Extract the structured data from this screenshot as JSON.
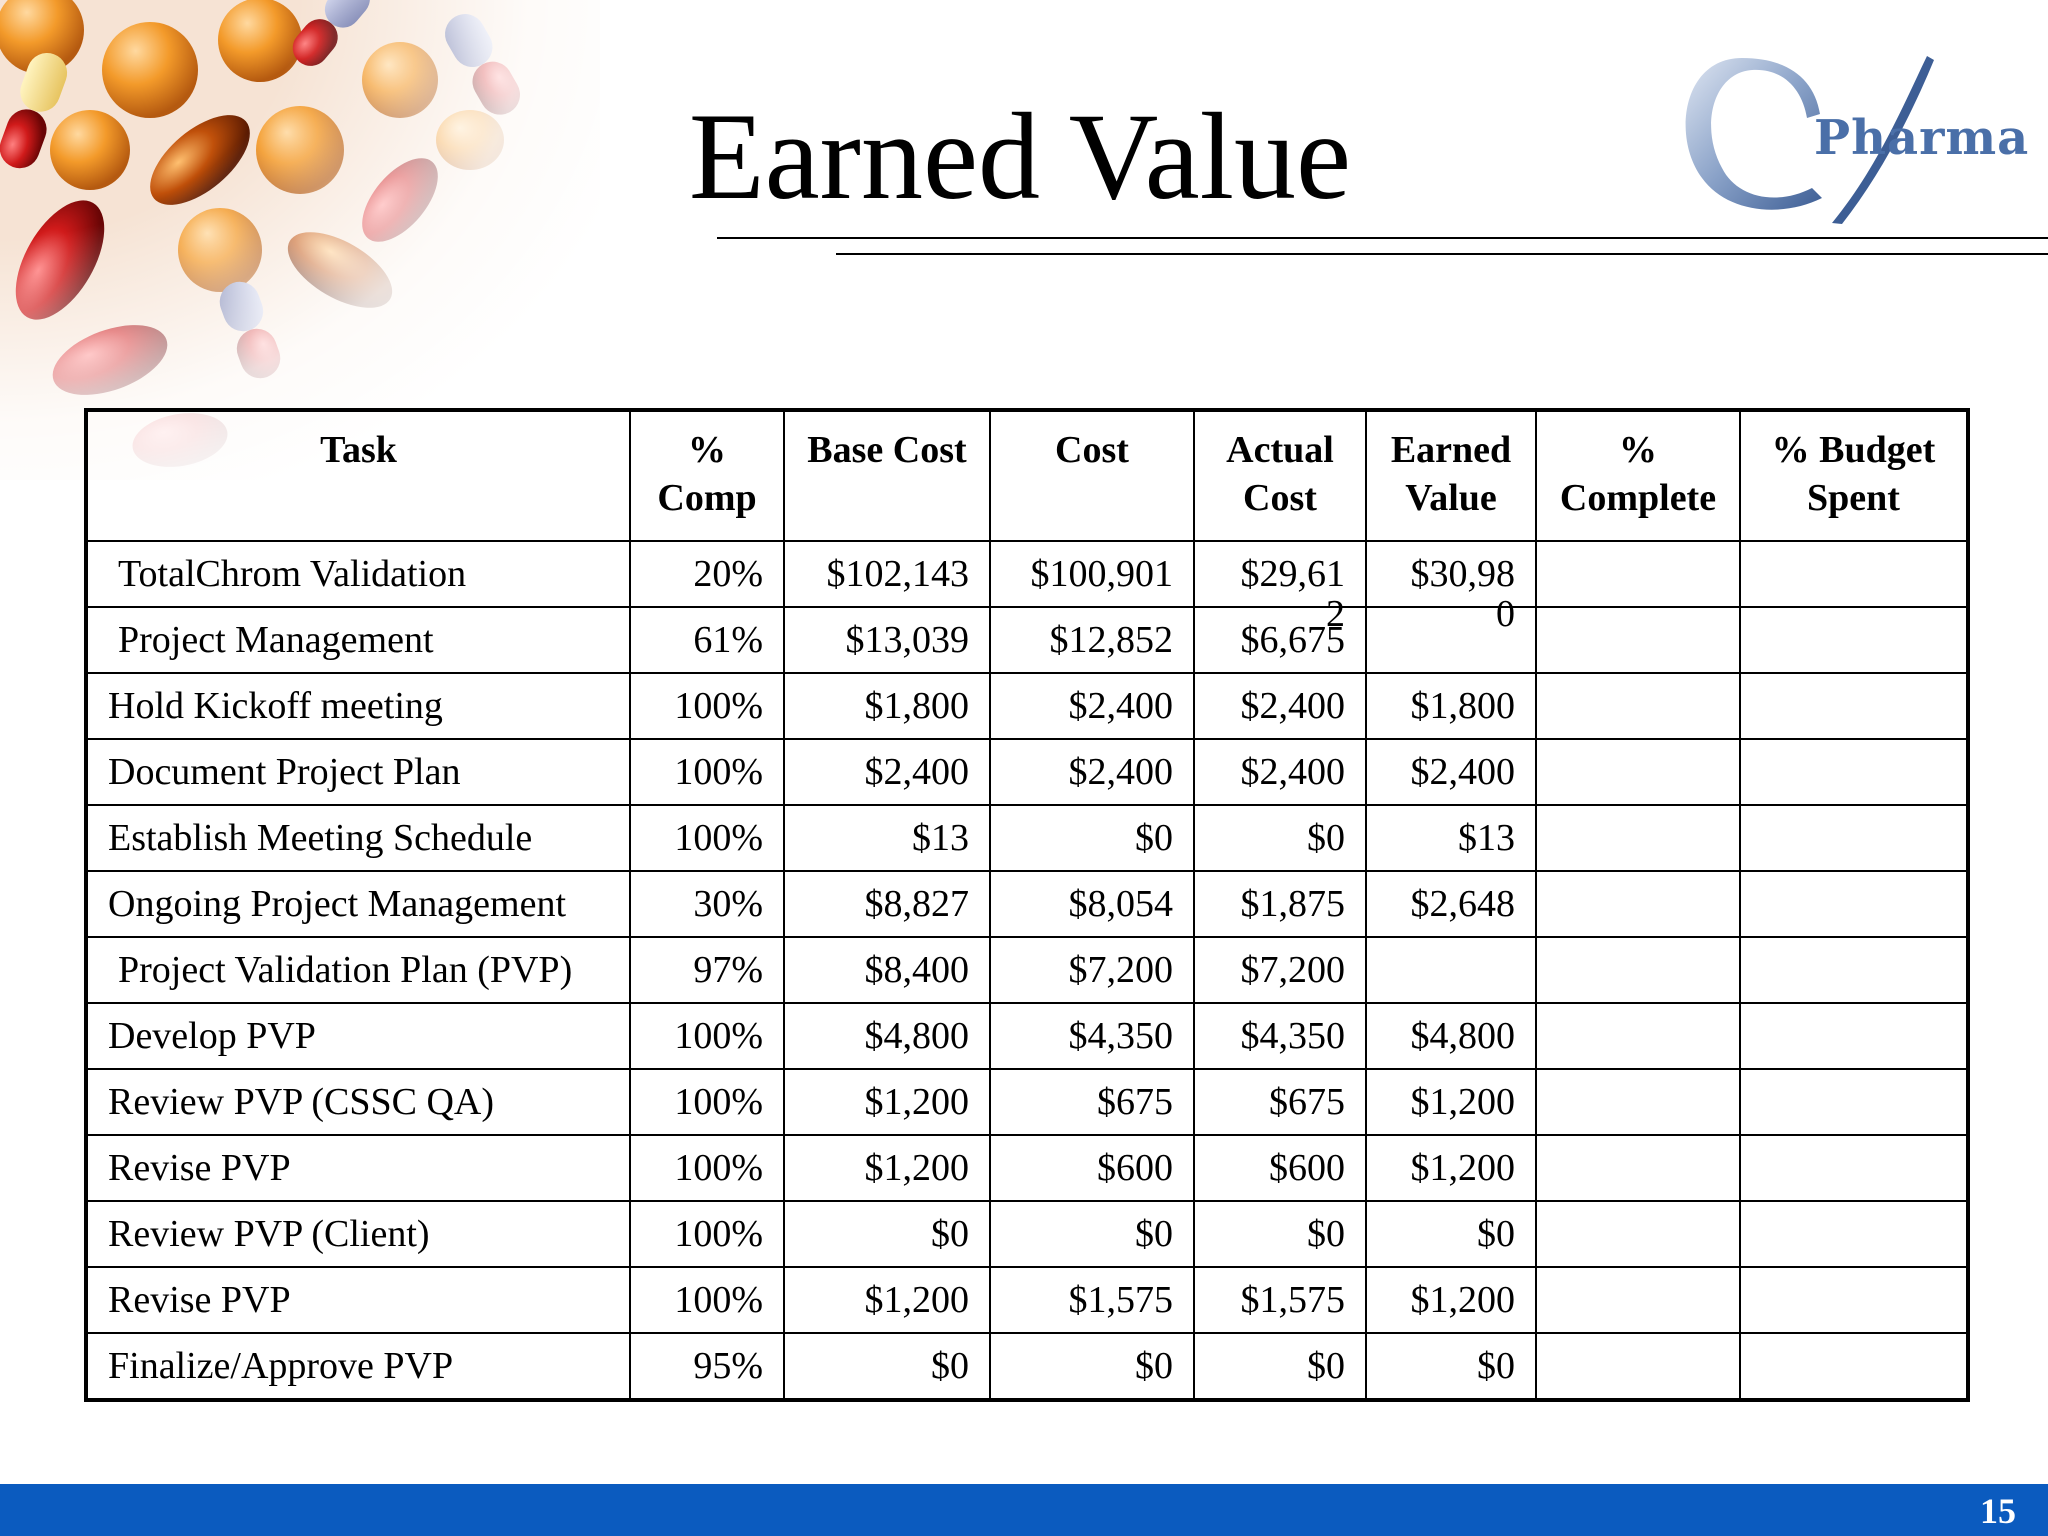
{
  "slide": {
    "title": "Earned Value",
    "page_number": "15"
  },
  "logo": {
    "text": "Pharma",
    "letter": "Q"
  },
  "table": {
    "headers": {
      "task": "Task",
      "pct_comp": "% Comp",
      "base_cost": "Base Cost",
      "cost": "Cost",
      "actual_cost": "Actual Cost",
      "earned_value": "Earned Value",
      "pct_complete": "% Complete",
      "pct_budget_spent": "% Budget Spent"
    },
    "rows": [
      {
        "task": "TotalChrom Validation",
        "pct_comp": "20%",
        "base_cost": "$102,143",
        "cost": "$100,901",
        "actual_cost": "$29,61",
        "actual_cost_spill": "2",
        "earned_value": "$30,98",
        "earned_value_spill": "0",
        "pct_complete": "",
        "pct_budget_spent": ""
      },
      {
        "task": "Project Management",
        "pct_comp": "61%",
        "base_cost": "$13,039",
        "cost": "$12,852",
        "actual_cost": "$6,675",
        "earned_value": "",
        "pct_complete": "",
        "pct_budget_spent": ""
      },
      {
        "task": "Hold Kickoff meeting",
        "pct_comp": "100%",
        "base_cost": "$1,800",
        "cost": "$2,400",
        "actual_cost": "$2,400",
        "earned_value": "$1,800",
        "pct_complete": "",
        "pct_budget_spent": ""
      },
      {
        "task": "Document Project Plan",
        "pct_comp": "100%",
        "base_cost": "$2,400",
        "cost": "$2,400",
        "actual_cost": "$2,400",
        "earned_value": "$2,400",
        "pct_complete": "",
        "pct_budget_spent": ""
      },
      {
        "task": "Establish Meeting Schedule",
        "pct_comp": "100%",
        "base_cost": "$13",
        "cost": "$0",
        "actual_cost": "$0",
        "earned_value": "$13",
        "pct_complete": "",
        "pct_budget_spent": ""
      },
      {
        "task": "Ongoing Project Management",
        "pct_comp": "30%",
        "base_cost": "$8,827",
        "cost": "$8,054",
        "actual_cost": "$1,875",
        "earned_value": "$2,648",
        "pct_complete": "",
        "pct_budget_spent": ""
      },
      {
        "task": "Project Validation Plan (PVP)",
        "pct_comp": "97%",
        "base_cost": "$8,400",
        "cost": "$7,200",
        "actual_cost": "$7,200",
        "earned_value": "",
        "pct_complete": "",
        "pct_budget_spent": ""
      },
      {
        "task": "Develop PVP",
        "pct_comp": "100%",
        "base_cost": "$4,800",
        "cost": "$4,350",
        "actual_cost": "$4,350",
        "earned_value": "$4,800",
        "pct_complete": "",
        "pct_budget_spent": ""
      },
      {
        "task": "Review PVP (CSSC QA)",
        "pct_comp": "100%",
        "base_cost": "$1,200",
        "cost": "$675",
        "actual_cost": "$675",
        "earned_value": "$1,200",
        "pct_complete": "",
        "pct_budget_spent": ""
      },
      {
        "task": "Revise PVP",
        "pct_comp": "100%",
        "base_cost": "$1,200",
        "cost": "$600",
        "actual_cost": "$600",
        "earned_value": "$1,200",
        "pct_complete": "",
        "pct_budget_spent": ""
      },
      {
        "task": "Review PVP (Client)",
        "pct_comp": "100%",
        "base_cost": "$0",
        "cost": "$0",
        "actual_cost": "$0",
        "earned_value": "$0",
        "pct_complete": "",
        "pct_budget_spent": ""
      },
      {
        "task": "Revise PVP",
        "pct_comp": "100%",
        "base_cost": "$1,200",
        "cost": "$1,575",
        "actual_cost": "$1,575",
        "earned_value": "$1,200",
        "pct_complete": "",
        "pct_budget_spent": ""
      },
      {
        "task": "Finalize/Approve PVP",
        "pct_comp": "95%",
        "base_cost": "$0",
        "cost": "$0",
        "actual_cost": "$0",
        "earned_value": "$0",
        "pct_complete": "",
        "pct_budget_spent": ""
      }
    ]
  },
  "colors": {
    "footer_bar": "#0b5bbf",
    "logo_blue": "#4a6fa8"
  },
  "decoration": {
    "corner_image": "pills-photo"
  }
}
